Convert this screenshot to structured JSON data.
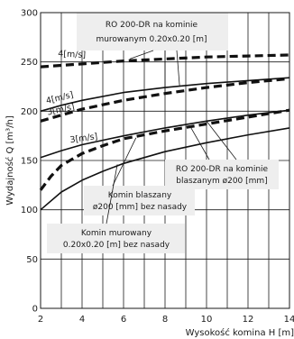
{
  "chart_data": {
    "type": "line",
    "xlabel": "Wysokość komina H [m]",
    "ylabel": "Wydajność Q [m³/h]",
    "xlim": [
      2,
      14
    ],
    "ylim": [
      0,
      300
    ],
    "xticks": [
      2,
      4,
      6,
      8,
      10,
      12,
      14
    ],
    "yticks": [
      0,
      50,
      100,
      150,
      200,
      250,
      300
    ],
    "xgrid": [
      2,
      3,
      4,
      5,
      6,
      7,
      8,
      9,
      10,
      11,
      12,
      13,
      14
    ],
    "ygrid": [
      0,
      50,
      100,
      150,
      200,
      250,
      300
    ],
    "grid": true,
    "series": [
      {
        "style": "dashed",
        "x": [
          2,
          4,
          6,
          8,
          10,
          12,
          14
        ],
        "y": [
          245,
          248,
          251,
          253,
          255,
          256,
          257
        ]
      },
      {
        "style": "dashed",
        "x": [
          2,
          3,
          4,
          6,
          8,
          10,
          12,
          14
        ],
        "y": [
          190,
          196,
          202,
          211,
          218,
          224,
          229,
          233
        ]
      },
      {
        "style": "solid",
        "x": [
          2,
          3,
          4,
          6,
          8,
          10,
          12,
          14
        ],
        "y": [
          200,
          206,
          211,
          219,
          224,
          228,
          231,
          234
        ]
      },
      {
        "style": "dashed",
        "x": [
          2,
          2.5,
          3,
          4,
          5,
          6,
          8,
          10,
          12,
          14
        ],
        "y": [
          120,
          134,
          145,
          157,
          165,
          172,
          180,
          187,
          194,
          201
        ]
      },
      {
        "style": "solid",
        "x": [
          2,
          3,
          4,
          6,
          8,
          10,
          12,
          14
        ],
        "y": [
          153,
          160,
          166,
          175,
          183,
          190,
          196,
          201
        ]
      },
      {
        "style": "solid",
        "x": [
          2,
          3,
          4,
          5,
          6,
          8,
          10,
          12,
          14
        ],
        "y": [
          100,
          118,
          130,
          139,
          147,
          159,
          168,
          176,
          183
        ]
      }
    ],
    "annotations": [
      {
        "id": "ro-murowany",
        "text": [
          "RO 200-DR na kominie",
          "murowanym 0.20x0.20 [m]"
        ]
      },
      {
        "id": "ro-blaszany",
        "text": [
          "RO 200-DR na kominie",
          "blaszanym ø200 [mm]"
        ]
      },
      {
        "id": "komin-blaszany",
        "text": [
          "Komin blaszany",
          "ø200 [mm] bez nasady"
        ]
      },
      {
        "id": "komin-murowany",
        "text": [
          "Komin murowany",
          "0.20x0.20 [m] bez nasady"
        ]
      }
    ],
    "velocity_labels": [
      {
        "text": "4[m/s]",
        "x": 3.5,
        "y": 255
      },
      {
        "text": "4[m/s]",
        "x": 2.95,
        "y": 211
      },
      {
        "text": "3[m/s]",
        "x": 3.0,
        "y": 199
      },
      {
        "text": "3[m/s]",
        "x": 4.1,
        "y": 170
      }
    ]
  }
}
